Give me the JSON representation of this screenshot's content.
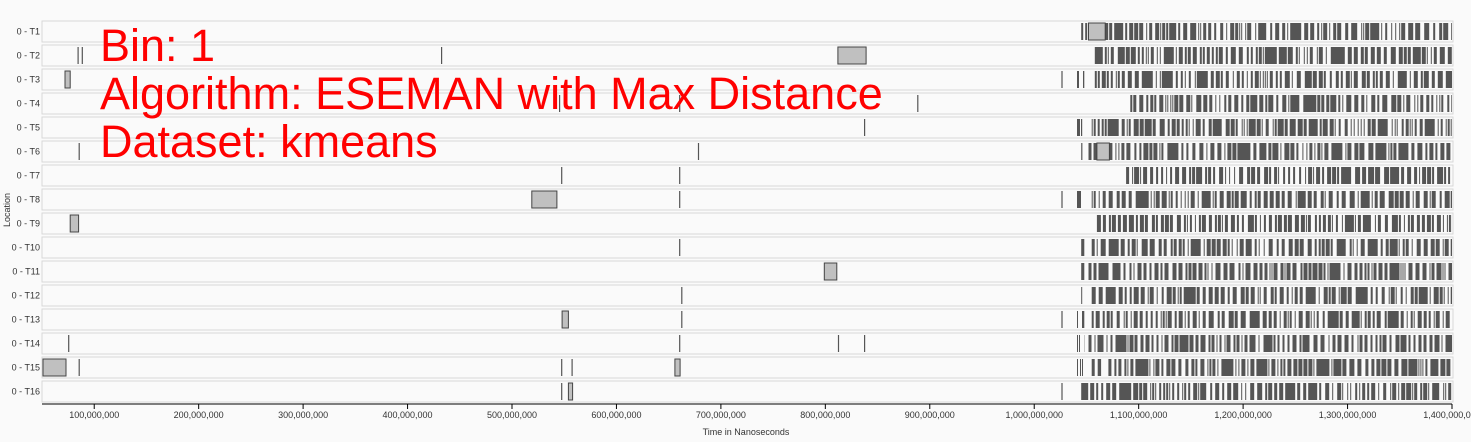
{
  "overlay": {
    "bin": "Bin: 1",
    "algorithm": "Algorithm: ESEMAN with Max Distance",
    "dataset": "Dataset: kmeans"
  },
  "colors": {
    "dense": "#555555",
    "light": "#c0c0c0",
    "row_border": "#d8d8d8",
    "text": "#ff0000"
  },
  "chart_data": {
    "type": "timeline",
    "xlabel": "Time in Nanoseconds",
    "ylabel": "Location",
    "xlim": [
      50000000,
      1400000000
    ],
    "x_ticks": [
      100000000,
      200000000,
      300000000,
      400000000,
      500000000,
      600000000,
      700000000,
      800000000,
      900000000,
      1000000000,
      1100000000,
      1200000000,
      1300000000,
      1400000000
    ],
    "x_tick_labels": [
      "100,000,000",
      "200,000,000",
      "300,000,000",
      "400,000,000",
      "500,000,000",
      "600,000,000",
      "700,000,000",
      "800,000,000",
      "900,000,000",
      "1,000,000,000",
      "1,100,000,000",
      "1,200,000,000",
      "1,300,000,000",
      "1,400,000,000"
    ],
    "dense_region_start": 1026000000,
    "rows": [
      {
        "label": "0 - T1",
        "lines": [
          1073000000
        ],
        "boxes": [
          [
            1052000000,
            1068000000
          ]
        ],
        "dense": [
          [
            1045000000,
            1052000000
          ],
          [
            1068000000,
            1400000000
          ]
        ]
      },
      {
        "label": "0 - T2",
        "lines": [
          84000000,
          88000000,
          432000000
        ],
        "boxes": [
          [
            812000000,
            839000000
          ]
        ],
        "dense": [
          [
            1058000000,
            1400000000
          ]
        ]
      },
      {
        "label": "0 - T3",
        "lines": [
          1026000000
        ],
        "boxes": [
          [
            72000000,
            77000000
          ]
        ],
        "dense": [
          [
            1041000000,
            1048000000
          ],
          [
            1058000000,
            1400000000
          ]
        ]
      },
      {
        "label": "0 - T4",
        "lines": [
          545000000,
          660000000,
          888000000
        ],
        "boxes": [],
        "dense": [
          [
            1092000000,
            1400000000
          ]
        ]
      },
      {
        "label": "0 - T5",
        "lines": [
          837000000
        ],
        "boxes": [],
        "dense": [
          [
            1041000000,
            1046000000
          ],
          [
            1055000000,
            1400000000
          ]
        ]
      },
      {
        "label": "0 - T6",
        "lines": [
          85000000,
          678000000,
          1045000000
        ],
        "boxes": [
          [
            1060000000,
            1072000000
          ]
        ],
        "dense": [
          [
            1052000000,
            1060000000
          ],
          [
            1072000000,
            1400000000
          ]
        ]
      },
      {
        "label": "0 - T7",
        "lines": [
          547000000,
          660000000
        ],
        "boxes": [],
        "dense": [
          [
            1088000000,
            1400000000
          ]
        ]
      },
      {
        "label": "0 - T8",
        "lines": [
          660000000,
          1026000000
        ],
        "boxes": [
          [
            519000000,
            543000000
          ]
        ],
        "dense": [
          [
            1041000000,
            1048000000
          ],
          [
            1055000000,
            1400000000
          ]
        ]
      },
      {
        "label": "0 - T9",
        "lines": [],
        "boxes": [
          [
            77000000,
            85000000
          ]
        ],
        "dense": [
          [
            1060000000,
            1400000000
          ]
        ]
      },
      {
        "label": "0 - T10",
        "lines": [
          660000000
        ],
        "boxes": [],
        "dense": [
          [
            1045000000,
            1048000000
          ],
          [
            1055000000,
            1400000000
          ]
        ]
      },
      {
        "label": "0 - T11",
        "lines": [],
        "boxes": [
          [
            799000000,
            811000000
          ]
        ],
        "dense": [
          [
            1045000000,
            1048000000
          ],
          [
            1052000000,
            1400000000
          ]
        ]
      },
      {
        "label": "0 - T12",
        "lines": [
          662000000
        ],
        "boxes": [],
        "dense": [
          [
            1045000000,
            1048000000
          ],
          [
            1055000000,
            1400000000
          ]
        ]
      },
      {
        "label": "0 - T13",
        "lines": [
          662000000,
          1026000000
        ],
        "boxes": [
          [
            548000000,
            554000000
          ]
        ],
        "dense": [
          [
            1041000000,
            1048000000
          ],
          [
            1055000000,
            1400000000
          ]
        ]
      },
      {
        "label": "0 - T14",
        "lines": [
          75000000,
          660000000,
          812000000,
          837000000
        ],
        "boxes": [],
        "dense": [
          [
            1041000000,
            1048000000
          ],
          [
            1052000000,
            1400000000
          ]
        ]
      },
      {
        "label": "0 - T15",
        "lines": [
          85000000,
          547000000,
          557000000
        ],
        "boxes": [
          [
            51000000,
            73000000
          ],
          [
            656000000,
            661000000
          ]
        ],
        "dense": [
          [
            1041000000,
            1048000000
          ],
          [
            1055000000,
            1064000000
          ],
          [
            1071000000,
            1400000000
          ]
        ]
      },
      {
        "label": "0 - T16",
        "lines": [
          547000000,
          1026000000
        ],
        "boxes": [
          [
            554000000,
            558000000
          ]
        ],
        "dense": [
          [
            1045000000,
            1400000000
          ]
        ]
      }
    ]
  }
}
